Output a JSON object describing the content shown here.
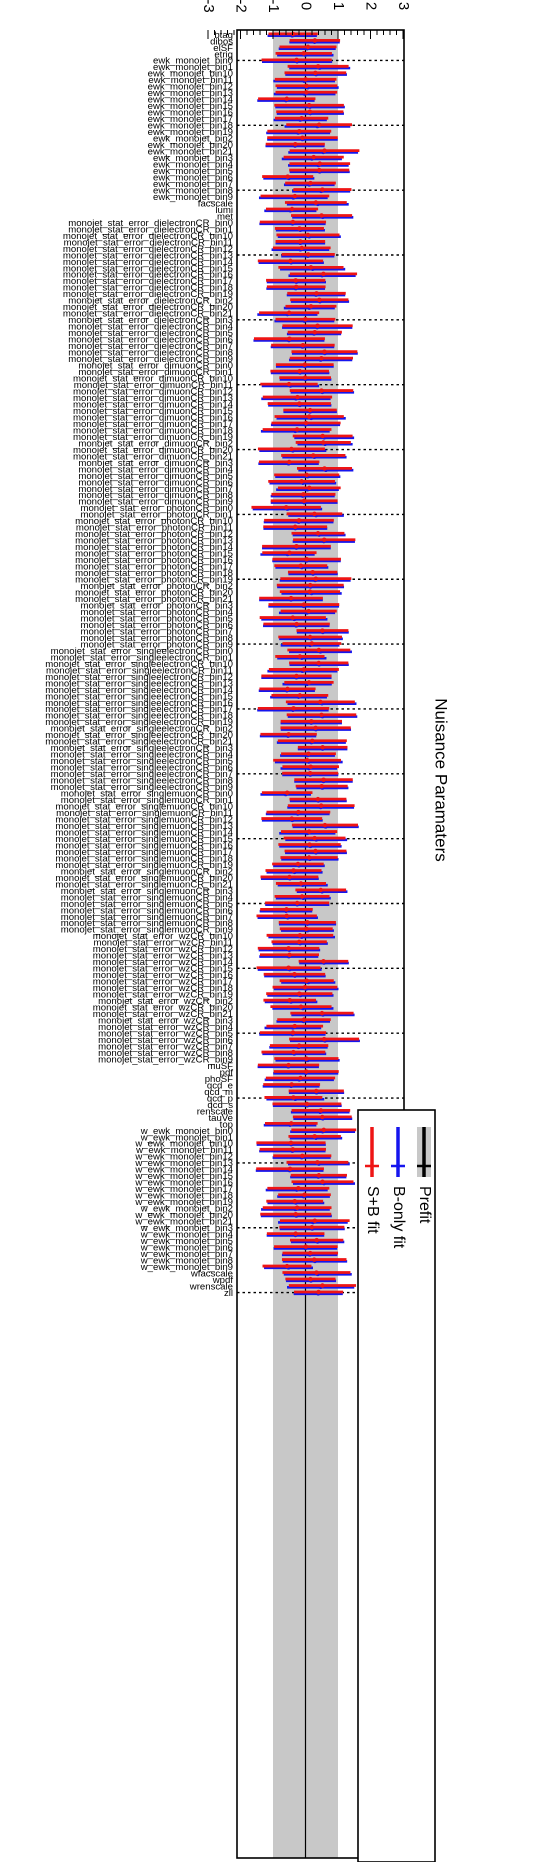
{
  "chart_data": {
    "type": "scatter",
    "title": "Nuisance Paramaters",
    "axis_range": [
      -3,
      3
    ],
    "tick_values": [
      -3,
      -2,
      -1,
      0,
      1,
      2,
      3
    ],
    "tick_labels": [
      "-3",
      "-2",
      "-1",
      "0",
      "1",
      "2",
      "3"
    ],
    "prefit_band": [
      -1,
      1
    ],
    "legend": [
      "Prefit",
      "B-only fit",
      "S+B fit"
    ],
    "legend_colors": {
      "prefit": "#000000",
      "prefit_band": "#c8c8c8",
      "bonly": "#1515ee",
      "sb": "#ee1515"
    },
    "parameters": [
      "btag",
      "dibos",
      "elSF",
      "etrig",
      "ewk_monojet_bin0",
      "ewk_monojet_bin1",
      "ewk_monojet_bin10",
      "ewk_monojet_bin11",
      "ewk_monojet_bin12",
      "ewk_monojet_bin13",
      "ewk_monojet_bin14",
      "ewk_monojet_bin15",
      "ewk_monojet_bin16",
      "ewk_monojet_bin17",
      "ewk_monojet_bin18",
      "ewk_monojet_bin19",
      "ewk_monojet_bin2",
      "ewk_monojet_bin20",
      "ewk_monojet_bin21",
      "ewk_monojet_bin3",
      "ewk_monojet_bin4",
      "ewk_monojet_bin5",
      "ewk_monojet_bin6",
      "ewk_monojet_bin7",
      "ewk_monojet_bin8",
      "ewk_monojet_bin9",
      "facscale",
      "lumi",
      "met",
      "monojet_stat_error_dielectronCR_bin0",
      "monojet_stat_error_dielectronCR_bin1",
      "monojet_stat_error_dielectronCR_bin10",
      "monojet_stat_error_dielectronCR_bin11",
      "monojet_stat_error_dielectronCR_bin12",
      "monojet_stat_error_dielectronCR_bin13",
      "monojet_stat_error_dielectronCR_bin14",
      "monojet_stat_error_dielectronCR_bin15",
      "monojet_stat_error_dielectronCR_bin16",
      "monojet_stat_error_dielectronCR_bin17",
      "monojet_stat_error_dielectronCR_bin18",
      "monojet_stat_error_dielectronCR_bin19",
      "monojet_stat_error_dielectronCR_bin2",
      "monojet_stat_error_dielectronCR_bin20",
      "monojet_stat_error_dielectronCR_bin21",
      "monojet_stat_error_dielectronCR_bin3",
      "monojet_stat_error_dielectronCR_bin4",
      "monojet_stat_error_dielectronCR_bin5",
      "monojet_stat_error_dielectronCR_bin6",
      "monojet_stat_error_dielectronCR_bin7",
      "monojet_stat_error_dielectronCR_bin8",
      "monojet_stat_error_dielectronCR_bin9",
      "monojet_stat_error_dimuonCR_bin0",
      "monojet_stat_error_dimuonCR_bin1",
      "monojet_stat_error_dimuonCR_bin10",
      "monojet_stat_error_dimuonCR_bin11",
      "monojet_stat_error_dimuonCR_bin12",
      "monojet_stat_error_dimuonCR_bin13",
      "monojet_stat_error_dimuonCR_bin14",
      "monojet_stat_error_dimuonCR_bin15",
      "monojet_stat_error_dimuonCR_bin16",
      "monojet_stat_error_dimuonCR_bin17",
      "monojet_stat_error_dimuonCR_bin18",
      "monojet_stat_error_dimuonCR_bin19",
      "monojet_stat_error_dimuonCR_bin2",
      "monojet_stat_error_dimuonCR_bin20",
      "monojet_stat_error_dimuonCR_bin21",
      "monojet_stat_error_dimuonCR_bin3",
      "monojet_stat_error_dimuonCR_bin4",
      "monojet_stat_error_dimuonCR_bin5",
      "monojet_stat_error_dimuonCR_bin6",
      "monojet_stat_error_dimuonCR_bin7",
      "monojet_stat_error_dimuonCR_bin8",
      "monojet_stat_error_dimuonCR_bin9",
      "monojet_stat_error_photonCR_bin0",
      "monojet_stat_error_photonCR_bin1",
      "monojet_stat_error_photonCR_bin10",
      "monojet_stat_error_photonCR_bin11",
      "monojet_stat_error_photonCR_bin12",
      "monojet_stat_error_photonCR_bin13",
      "monojet_stat_error_photonCR_bin14",
      "monojet_stat_error_photonCR_bin15",
      "monojet_stat_error_photonCR_bin16",
      "monojet_stat_error_photonCR_bin17",
      "monojet_stat_error_photonCR_bin18",
      "monojet_stat_error_photonCR_bin19",
      "monojet_stat_error_photonCR_bin2",
      "monojet_stat_error_photonCR_bin20",
      "monojet_stat_error_photonCR_bin21",
      "monojet_stat_error_photonCR_bin3",
      "monojet_stat_error_photonCR_bin4",
      "monojet_stat_error_photonCR_bin5",
      "monojet_stat_error_photonCR_bin6",
      "monojet_stat_error_photonCR_bin7",
      "monojet_stat_error_photonCR_bin8",
      "monojet_stat_error_photonCR_bin9",
      "monojet_stat_error_singleelectronCR_bin0",
      "monojet_stat_error_singleelectronCR_bin1",
      "monojet_stat_error_singleelectronCR_bin10",
      "monojet_stat_error_singleelectronCR_bin11",
      "monojet_stat_error_singleelectronCR_bin12",
      "monojet_stat_error_singleelectronCR_bin13",
      "monojet_stat_error_singleelectronCR_bin14",
      "monojet_stat_error_singleelectronCR_bin15",
      "monojet_stat_error_singleelectronCR_bin16",
      "monojet_stat_error_singleelectronCR_bin17",
      "monojet_stat_error_singleelectronCR_bin18",
      "monojet_stat_error_singleelectronCR_bin19",
      "monojet_stat_error_singleelectronCR_bin2",
      "monojet_stat_error_singleelectronCR_bin20",
      "monojet_stat_error_singleelectronCR_bin21",
      "monojet_stat_error_singleelectronCR_bin3",
      "monojet_stat_error_singleelectronCR_bin4",
      "monojet_stat_error_singleelectronCR_bin5",
      "monojet_stat_error_singleelectronCR_bin6",
      "monojet_stat_error_singleelectronCR_bin7",
      "monojet_stat_error_singleelectronCR_bin8",
      "monojet_stat_error_singleelectronCR_bin9",
      "monojet_stat_error_singlemuonCR_bin0",
      "monojet_stat_error_singlemuonCR_bin1",
      "monojet_stat_error_singlemuonCR_bin10",
      "monojet_stat_error_singlemuonCR_bin11",
      "monojet_stat_error_singlemuonCR_bin12",
      "monojet_stat_error_singlemuonCR_bin13",
      "monojet_stat_error_singlemuonCR_bin14",
      "monojet_stat_error_singlemuonCR_bin15",
      "monojet_stat_error_singlemuonCR_bin16",
      "monojet_stat_error_singlemuonCR_bin17",
      "monojet_stat_error_singlemuonCR_bin18",
      "monojet_stat_error_singlemuonCR_bin19",
      "monojet_stat_error_singlemuonCR_bin2",
      "monojet_stat_error_singlemuonCR_bin20",
      "monojet_stat_error_singlemuonCR_bin21",
      "monojet_stat_error_singlemuonCR_bin3",
      "monojet_stat_error_singlemuonCR_bin4",
      "monojet_stat_error_singlemuonCR_bin5",
      "monojet_stat_error_singlemuonCR_bin6",
      "monojet_stat_error_singlemuonCR_bin7",
      "monojet_stat_error_singlemuonCR_bin8",
      "monojet_stat_error_singlemuonCR_bin9",
      "monojet_stat_error_wzCR_bin10",
      "monojet_stat_error_wzCR_bin11",
      "monojet_stat_error_wzCR_bin12",
      "monojet_stat_error_wzCR_bin13",
      "monojet_stat_error_wzCR_bin14",
      "monojet_stat_error_wzCR_bin15",
      "monojet_stat_error_wzCR_bin16",
      "monojet_stat_error_wzCR_bin17",
      "monojet_stat_error_wzCR_bin18",
      "monojet_stat_error_wzCR_bin19",
      "monojet_stat_error_wzCR_bin2",
      "monojet_stat_error_wzCR_bin20",
      "monojet_stat_error_wzCR_bin21",
      "monojet_stat_error_wzCR_bin3",
      "monojet_stat_error_wzCR_bin4",
      "monojet_stat_error_wzCR_bin5",
      "monojet_stat_error_wzCR_bin6",
      "monojet_stat_error_wzCR_bin7",
      "monojet_stat_error_wzCR_bin8",
      "monojet_stat_error_wzCR_bin9",
      "muSF",
      "pdf",
      "phoSF",
      "qcd_e",
      "qcd_m",
      "qcd_p",
      "qcd_s",
      "renscale",
      "tauVe",
      "top",
      "w_ewk_monojet_bin0",
      "w_ewk_monojet_bin1",
      "w_ewk_monojet_bin10",
      "w_ewk_monojet_bin11",
      "w_ewk_monojet_bin12",
      "w_ewk_monojet_bin13",
      "w_ewk_monojet_bin14",
      "w_ewk_monojet_bin15",
      "w_ewk_monojet_bin16",
      "w_ewk_monojet_bin17",
      "w_ewk_monojet_bin18",
      "w_ewk_monojet_bin19",
      "w_ewk_monojet_bin2",
      "w_ewk_monojet_bin20",
      "w_ewk_monojet_bin21",
      "w_ewk_monojet_bin3",
      "w_ewk_monojet_bin4",
      "w_ewk_monojet_bin5",
      "w_ewk_monojet_bin6",
      "w_ewk_monojet_bin7",
      "w_ewk_monojet_bin8",
      "w_ewk_monojet_bin9",
      "wfacscale",
      "wpdf",
      "wrenscale",
      "zll"
    ],
    "dashed_every": 10,
    "fit_note": "pulls approximately within [-1.5, 1.5] with widths approximately 1"
  }
}
